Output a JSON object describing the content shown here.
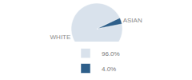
{
  "chart_data": {
    "type": "pie",
    "categories": [
      "WHITE",
      "ASIAN"
    ],
    "values": [
      96.0,
      4.0
    ],
    "value_labels": [
      "96.0%",
      "4.0%"
    ],
    "colors": [
      "#d9e2ec",
      "#2e5f8a"
    ],
    "legend": "bottom"
  }
}
